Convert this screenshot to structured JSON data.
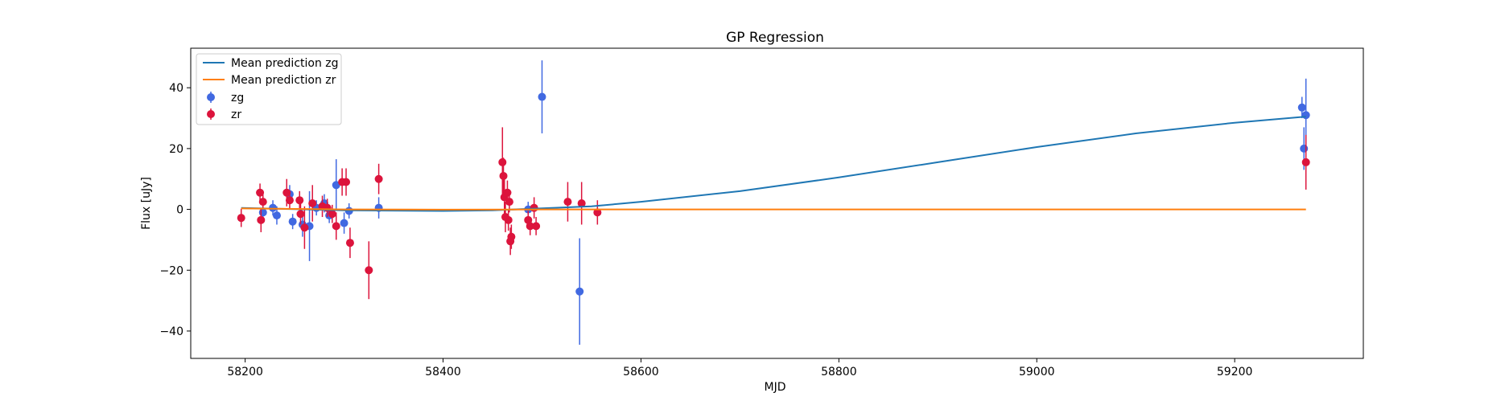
{
  "chart_data": {
    "type": "scatter",
    "title": "GP Regression",
    "xlabel": "MJD",
    "ylabel": "Flux [uJy]",
    "xlim": [
      58145,
      59330
    ],
    "ylim": [
      -49,
      53
    ],
    "xticks": [
      58200,
      58400,
      58600,
      58800,
      59000,
      59200
    ],
    "yticks": [
      -40,
      -20,
      0,
      20,
      40
    ],
    "grid": false,
    "legend_position": "top-left",
    "lines": [
      {
        "name": "Mean prediction zg",
        "color": "#1f77b4",
        "x": [
          58196,
          58300,
          58400,
          58450,
          58490,
          58550,
          58600,
          58700,
          58800,
          58900,
          59000,
          59100,
          59200,
          59272
        ],
        "y": [
          0.5,
          -0.3,
          -0.5,
          -0.3,
          0.2,
          1.0,
          2.5,
          6.0,
          10.5,
          15.5,
          20.5,
          25.0,
          28.5,
          30.5
        ]
      },
      {
        "name": "Mean prediction zr",
        "color": "#ff7f0e",
        "x": [
          58196,
          58300,
          58400,
          58500,
          58600,
          58800,
          59000,
          59200,
          59272
        ],
        "y": [
          0.3,
          0.0,
          -0.1,
          0.0,
          0.0,
          0.0,
          0.0,
          0.0,
          0.0
        ]
      }
    ],
    "series": [
      {
        "name": "zg",
        "color": "#4169e1",
        "points": [
          {
            "x": 58218,
            "y": -1.0,
            "err": 3.0
          },
          {
            "x": 58228,
            "y": 0.5,
            "err": 2.5
          },
          {
            "x": 58232,
            "y": -2.0,
            "err": 3.0
          },
          {
            "x": 58245,
            "y": 5.0,
            "err": 3.0
          },
          {
            "x": 58248,
            "y": -4.0,
            "err": 2.5
          },
          {
            "x": 58258,
            "y": -5.0,
            "err": 4.0
          },
          {
            "x": 58265,
            "y": -5.5,
            "err": 11.5
          },
          {
            "x": 58272,
            "y": 0.5,
            "err": 2.5
          },
          {
            "x": 58280,
            "y": 2.0,
            "err": 3.0
          },
          {
            "x": 58285,
            "y": -2.0,
            "err": 2.5
          },
          {
            "x": 58292,
            "y": 8.0,
            "err": 8.5
          },
          {
            "x": 58300,
            "y": -4.5,
            "err": 3.5
          },
          {
            "x": 58305,
            "y": -0.5,
            "err": 2.5
          },
          {
            "x": 58335,
            "y": 0.5,
            "err": 3.5
          },
          {
            "x": 58486,
            "y": 0.0,
            "err": 2.5
          },
          {
            "x": 58500,
            "y": 37.0,
            "err": 12.0
          },
          {
            "x": 58538,
            "y": -27.0,
            "err": 17.5
          },
          {
            "x": 59268,
            "y": 33.5,
            "err": 3.5
          },
          {
            "x": 59270,
            "y": 20.0,
            "err": 7.0
          },
          {
            "x": 59272,
            "y": 31.0,
            "err": 12.0
          }
        ]
      },
      {
        "name": "zr",
        "color": "#dc143c",
        "points": [
          {
            "x": 58196,
            "y": -2.8,
            "err": 3.0
          },
          {
            "x": 58215,
            "y": 5.5,
            "err": 3.0
          },
          {
            "x": 58216,
            "y": -3.5,
            "err": 4.0
          },
          {
            "x": 58218,
            "y": 2.5,
            "err": 2.5
          },
          {
            "x": 58242,
            "y": 5.5,
            "err": 4.5
          },
          {
            "x": 58245,
            "y": 3.0,
            "err": 3.0
          },
          {
            "x": 58255,
            "y": 3.0,
            "err": 3.0
          },
          {
            "x": 58256,
            "y": -1.5,
            "err": 3.5
          },
          {
            "x": 58260,
            "y": -6.0,
            "err": 7.0
          },
          {
            "x": 58268,
            "y": 2.0,
            "err": 6.0
          },
          {
            "x": 58278,
            "y": 1.0,
            "err": 3.5
          },
          {
            "x": 58283,
            "y": 0.5,
            "err": 3.0
          },
          {
            "x": 58288,
            "y": -1.5,
            "err": 3.0
          },
          {
            "x": 58292,
            "y": -5.5,
            "err": 4.5
          },
          {
            "x": 58298,
            "y": 9.0,
            "err": 4.5
          },
          {
            "x": 58302,
            "y": 9.0,
            "err": 4.5
          },
          {
            "x": 58306,
            "y": -11.0,
            "err": 5.0
          },
          {
            "x": 58325,
            "y": -20.0,
            "err": 9.5
          },
          {
            "x": 58335,
            "y": 10.0,
            "err": 5.0
          },
          {
            "x": 58460,
            "y": 15.5,
            "err": 11.5
          },
          {
            "x": 58461,
            "y": 11.0,
            "err": 6.0
          },
          {
            "x": 58462,
            "y": 4.0,
            "err": 6.0
          },
          {
            "x": 58463,
            "y": -2.5,
            "err": 5.0
          },
          {
            "x": 58465,
            "y": 5.5,
            "err": 4.0
          },
          {
            "x": 58466,
            "y": -3.5,
            "err": 3.5
          },
          {
            "x": 58467,
            "y": 2.5,
            "err": 3.5
          },
          {
            "x": 58468,
            "y": -10.5,
            "err": 4.5
          },
          {
            "x": 58469,
            "y": -9.0,
            "err": 4.0
          },
          {
            "x": 58486,
            "y": -3.5,
            "err": 3.0
          },
          {
            "x": 58488,
            "y": -5.5,
            "err": 3.0
          },
          {
            "x": 58492,
            "y": 0.5,
            "err": 3.5
          },
          {
            "x": 58494,
            "y": -5.5,
            "err": 3.0
          },
          {
            "x": 58526,
            "y": 2.5,
            "err": 6.5
          },
          {
            "x": 58540,
            "y": 2.0,
            "err": 7.0
          },
          {
            "x": 58556,
            "y": -1.0,
            "err": 4.0
          },
          {
            "x": 59272,
            "y": 15.5,
            "err": 9.0
          }
        ]
      }
    ]
  }
}
